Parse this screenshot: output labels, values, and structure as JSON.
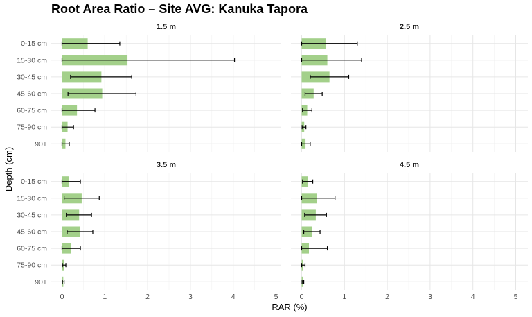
{
  "chart_data": {
    "type": "bar",
    "orientation": "horizontal",
    "title": "Root Area Ratio – Site AVG: Kanuka Tapora",
    "xlabel": "RAR (%)",
    "ylabel": "Depth (cm)",
    "xlim": [
      0,
      5.3
    ],
    "xticks": [
      0,
      1,
      2,
      3,
      4,
      5
    ],
    "categories": [
      "0-15 cm",
      "15-30 cm",
      "30-45 cm",
      "45-60 cm",
      "60-75 cm",
      "75-90 cm",
      "90+"
    ],
    "bar_color": "#a3d08a",
    "grid": true,
    "facets": [
      {
        "name": "1.5 m",
        "values": [
          0.6,
          1.53,
          0.92,
          0.94,
          0.35,
          0.13,
          0.08
        ],
        "err_low": [
          0.0,
          0.0,
          0.2,
          0.14,
          0.0,
          0.0,
          0.0
        ],
        "err_high": [
          1.35,
          4.03,
          1.63,
          1.73,
          0.77,
          0.27,
          0.17
        ]
      },
      {
        "name": "2.5 m",
        "values": [
          0.57,
          0.6,
          0.65,
          0.28,
          0.13,
          0.06,
          0.09
        ],
        "err_low": [
          0.0,
          0.0,
          0.2,
          0.08,
          0.02,
          0.01,
          0.0
        ],
        "err_high": [
          1.3,
          1.4,
          1.1,
          0.48,
          0.24,
          0.1,
          0.2
        ]
      },
      {
        "name": "3.5 m",
        "values": [
          0.16,
          0.46,
          0.4,
          0.42,
          0.21,
          0.05,
          0.03
        ],
        "err_low": [
          0.0,
          0.05,
          0.1,
          0.12,
          0.0,
          0.01,
          0.01
        ],
        "err_high": [
          0.43,
          0.87,
          0.69,
          0.72,
          0.43,
          0.09,
          0.05
        ]
      },
      {
        "name": "4.5 m",
        "values": [
          0.14,
          0.36,
          0.33,
          0.24,
          0.17,
          0.04,
          0.03
        ],
        "err_low": [
          0.02,
          0.0,
          0.07,
          0.05,
          0.0,
          0.0,
          0.01
        ],
        "err_high": [
          0.26,
          0.78,
          0.58,
          0.43,
          0.6,
          0.08,
          0.05
        ]
      }
    ]
  }
}
